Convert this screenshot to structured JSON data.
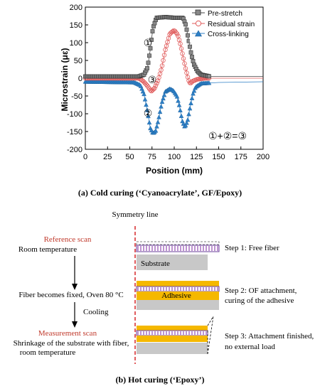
{
  "chart_data": {
    "type": "scatter",
    "ylabel": "Microstrain (με)",
    "xlabel": "Position (mm)",
    "xlim": [
      0,
      200
    ],
    "ylim": [
      -200,
      200
    ],
    "x_ticks": [
      "0",
      "25",
      "50",
      "75",
      "100",
      "125",
      "150",
      "175",
      "200"
    ],
    "y_ticks": [
      "200",
      "150",
      "100",
      "50",
      "0",
      "-50",
      "-100",
      "-150",
      "-200"
    ],
    "legend_position": "top-right",
    "series": [
      {
        "name": "Pre-stretch",
        "color": "#444444",
        "marker": "square",
        "points": [
          [
            0,
            5
          ],
          [
            60,
            5
          ],
          [
            66,
            10
          ],
          [
            70,
            30
          ],
          [
            73,
            80
          ],
          [
            76,
            140
          ],
          [
            80,
            170
          ],
          [
            90,
            172
          ],
          [
            100,
            170
          ],
          [
            110,
            170
          ],
          [
            113,
            150
          ],
          [
            116,
            110
          ],
          [
            119,
            70
          ],
          [
            122,
            40
          ],
          [
            126,
            20
          ],
          [
            130,
            10
          ],
          [
            140,
            5
          ],
          [
            150,
            5
          ],
          [
            200,
            5
          ]
        ]
      },
      {
        "name": "Residual strain",
        "color": "#e05a5a",
        "marker": "circle",
        "points": [
          [
            0,
            0
          ],
          [
            60,
            0
          ],
          [
            65,
            -8
          ],
          [
            70,
            -22
          ],
          [
            74,
            -37
          ],
          [
            78,
            -28
          ],
          [
            82,
            -5
          ],
          [
            86,
            30
          ],
          [
            90,
            80
          ],
          [
            95,
            125
          ],
          [
            100,
            135
          ],
          [
            104,
            122
          ],
          [
            107,
            95
          ],
          [
            110,
            60
          ],
          [
            113,
            25
          ],
          [
            116,
            -5
          ],
          [
            118,
            -15
          ],
          [
            121,
            -8
          ],
          [
            126,
            -3
          ],
          [
            135,
            0
          ],
          [
            150,
            0
          ],
          [
            200,
            0
          ]
        ]
      },
      {
        "name": "Cross-linking",
        "color": "#2d7fc6",
        "marker": "triangle",
        "points": [
          [
            0,
            -10
          ],
          [
            55,
            -12
          ],
          [
            62,
            -20
          ],
          [
            66,
            -45
          ],
          [
            70,
            -95
          ],
          [
            73,
            -140
          ],
          [
            76,
            -155
          ],
          [
            79,
            -150
          ],
          [
            82,
            -120
          ],
          [
            86,
            -70
          ],
          [
            90,
            -38
          ],
          [
            95,
            -30
          ],
          [
            99,
            -35
          ],
          [
            103,
            -50
          ],
          [
            106,
            -80
          ],
          [
            109,
            -120
          ],
          [
            112,
            -138
          ],
          [
            115,
            -120
          ],
          [
            118,
            -80
          ],
          [
            121,
            -45
          ],
          [
            124,
            -25
          ],
          [
            130,
            -15
          ],
          [
            150,
            -12
          ],
          [
            200,
            -10
          ]
        ]
      }
    ],
    "annotations": [
      "①",
      "②",
      "③",
      "①+②=③"
    ]
  },
  "caption_a": "(a) Cold curing (‘Cyanoacrylate’, GF/Epoxy)",
  "caption_b": "(b) Hot curing (‘Epoxy’)",
  "symmetry_label": "Symmetry line",
  "left": {
    "ref_title": "Reference scan",
    "ref_sub": "Room temperature",
    "fixed_text": "Fiber becomes fixed, Oven 80 °C",
    "cooling": "Cooling",
    "meas_title": "Measurement scan",
    "meas_line1": "Shrinkage of the substrate with fiber,",
    "meas_line2": "room temperature"
  },
  "diagram": {
    "substrate": "Substrate",
    "adhesive": "Adhesive"
  },
  "steps": {
    "s1": "Step 1: Free fiber",
    "s2a": "Step 2: OF attachment,",
    "s2b": "curing of the adhesive",
    "s3a": "Step 3: Attachment finished,",
    "s3b": "no external load"
  },
  "colors": {
    "red_title": "#c0392b",
    "adhesive": "#f5b800",
    "fiber": "#9b59b6",
    "substrate": "#c8c8c8",
    "symmetry": "#d62728"
  }
}
